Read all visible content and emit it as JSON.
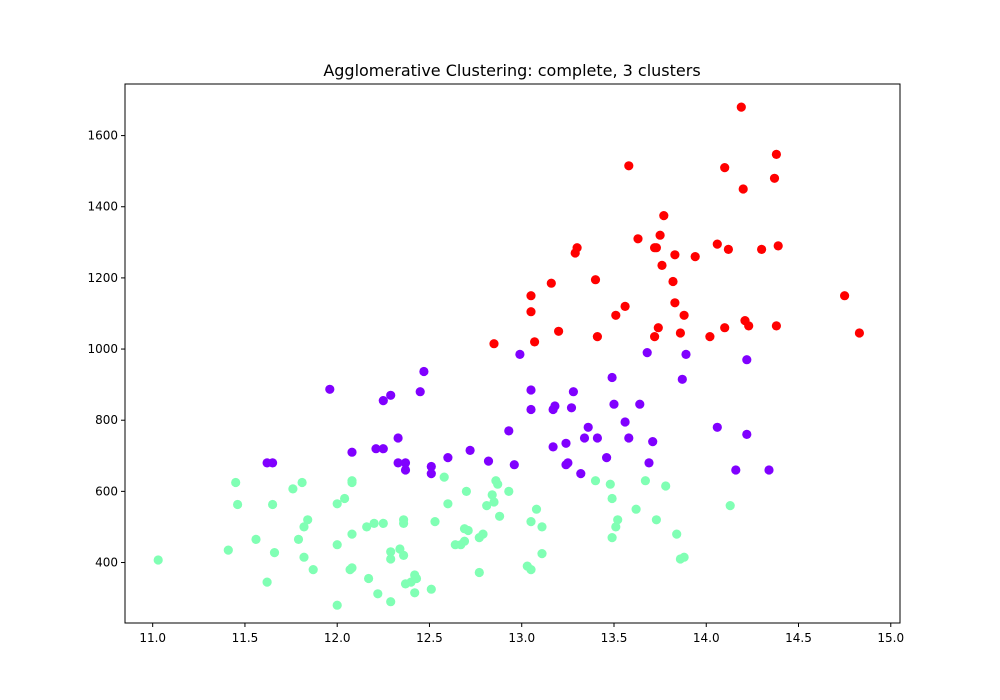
{
  "chart_data": {
    "type": "scatter",
    "title": "Agglomerative Clustering: complete, 3 clusters",
    "xlabel": "",
    "ylabel": "",
    "xlim": [
      10.85,
      15.05
    ],
    "ylim": [
      230,
      1745
    ],
    "xticks": [
      11.0,
      11.5,
      12.0,
      12.5,
      13.0,
      13.5,
      14.0,
      14.5,
      15.0
    ],
    "xtick_labels": [
      "11.0",
      "11.5",
      "12.0",
      "12.5",
      "13.0",
      "13.5",
      "14.0",
      "14.5",
      "15.0"
    ],
    "yticks": [
      400,
      600,
      800,
      1000,
      1200,
      1400,
      1600
    ],
    "ytick_labels": [
      "400",
      "600",
      "800",
      "1000",
      "1200",
      "1400",
      "1600"
    ],
    "grid": false,
    "legend": "none",
    "series": [
      {
        "color": "#ff0000",
        "points": [
          [
            14.19,
            1680
          ],
          [
            13.58,
            1515
          ],
          [
            14.1,
            1510
          ],
          [
            14.38,
            1547
          ],
          [
            14.2,
            1450
          ],
          [
            14.37,
            1480
          ],
          [
            13.77,
            1375
          ],
          [
            13.75,
            1320
          ],
          [
            13.63,
            1310
          ],
          [
            13.3,
            1285
          ],
          [
            13.29,
            1270
          ],
          [
            13.72,
            1285
          ],
          [
            13.73,
            1285
          ],
          [
            14.06,
            1295
          ],
          [
            14.12,
            1280
          ],
          [
            14.3,
            1280
          ],
          [
            14.39,
            1290
          ],
          [
            13.4,
            1195
          ],
          [
            13.76,
            1235
          ],
          [
            13.83,
            1265
          ],
          [
            13.94,
            1260
          ],
          [
            13.16,
            1185
          ],
          [
            13.05,
            1150
          ],
          [
            13.82,
            1190
          ],
          [
            13.83,
            1130
          ],
          [
            13.56,
            1120
          ],
          [
            13.05,
            1105
          ],
          [
            13.51,
            1095
          ],
          [
            13.88,
            1095
          ],
          [
            14.21,
            1080
          ],
          [
            14.1,
            1060
          ],
          [
            14.23,
            1065
          ],
          [
            14.38,
            1065
          ],
          [
            13.74,
            1060
          ],
          [
            13.2,
            1050
          ],
          [
            13.72,
            1035
          ],
          [
            13.86,
            1045
          ],
          [
            14.02,
            1035
          ],
          [
            13.41,
            1035
          ],
          [
            13.07,
            1020
          ],
          [
            12.85,
            1015
          ],
          [
            14.75,
            1150
          ],
          [
            14.83,
            1045
          ]
        ]
      },
      {
        "color": "#8000ff",
        "points": [
          [
            12.47,
            937
          ],
          [
            11.96,
            887
          ],
          [
            12.25,
            855
          ],
          [
            12.29,
            870
          ],
          [
            12.45,
            880
          ],
          [
            12.99,
            985
          ],
          [
            13.68,
            990
          ],
          [
            13.89,
            985
          ],
          [
            14.22,
            970
          ],
          [
            13.49,
            920
          ],
          [
            13.87,
            915
          ],
          [
            13.05,
            885
          ],
          [
            13.28,
            880
          ],
          [
            13.17,
            830
          ],
          [
            13.18,
            840
          ],
          [
            13.05,
            830
          ],
          [
            13.27,
            835
          ],
          [
            13.5,
            845
          ],
          [
            13.64,
            845
          ],
          [
            12.93,
            770
          ],
          [
            13.36,
            780
          ],
          [
            13.56,
            795
          ],
          [
            14.06,
            780
          ],
          [
            14.22,
            760
          ],
          [
            12.33,
            750
          ],
          [
            13.34,
            750
          ],
          [
            13.41,
            750
          ],
          [
            13.58,
            750
          ],
          [
            13.71,
            740
          ],
          [
            13.17,
            725
          ],
          [
            13.24,
            735
          ],
          [
            12.21,
            720
          ],
          [
            12.25,
            720
          ],
          [
            12.72,
            715
          ],
          [
            12.08,
            710
          ],
          [
            12.6,
            695
          ],
          [
            13.46,
            695
          ],
          [
            12.82,
            685
          ],
          [
            12.33,
            680
          ],
          [
            12.37,
            680
          ],
          [
            12.37,
            660
          ],
          [
            11.62,
            680
          ],
          [
            11.65,
            680
          ],
          [
            12.51,
            670
          ],
          [
            12.51,
            650
          ],
          [
            12.96,
            675
          ],
          [
            13.24,
            675
          ],
          [
            13.25,
            680
          ],
          [
            13.69,
            680
          ],
          [
            13.32,
            650
          ],
          [
            14.16,
            660
          ],
          [
            14.34,
            660
          ]
        ]
      },
      {
        "color": "#80ffb4",
        "points": [
          [
            11.03,
            407
          ],
          [
            11.41,
            435
          ],
          [
            11.45,
            625
          ],
          [
            11.46,
            563
          ],
          [
            11.56,
            465
          ],
          [
            11.62,
            345
          ],
          [
            11.65,
            563
          ],
          [
            11.66,
            428
          ],
          [
            11.76,
            607
          ],
          [
            11.79,
            465
          ],
          [
            11.81,
            625
          ],
          [
            11.82,
            415
          ],
          [
            11.82,
            500
          ],
          [
            11.84,
            520
          ],
          [
            11.87,
            380
          ],
          [
            12.0,
            280
          ],
          [
            12.0,
            450
          ],
          [
            12.0,
            565
          ],
          [
            12.04,
            580
          ],
          [
            12.07,
            380
          ],
          [
            12.08,
            385
          ],
          [
            12.08,
            480
          ],
          [
            12.08,
            625
          ],
          [
            12.08,
            630
          ],
          [
            12.16,
            500
          ],
          [
            12.17,
            355
          ],
          [
            12.2,
            510
          ],
          [
            12.22,
            312
          ],
          [
            12.25,
            510
          ],
          [
            12.29,
            290
          ],
          [
            12.29,
            410
          ],
          [
            12.29,
            430
          ],
          [
            12.34,
            438
          ],
          [
            12.36,
            510
          ],
          [
            12.36,
            520
          ],
          [
            12.36,
            420
          ],
          [
            12.37,
            340
          ],
          [
            12.4,
            345
          ],
          [
            12.42,
            315
          ],
          [
            12.42,
            365
          ],
          [
            12.43,
            355
          ],
          [
            12.51,
            325
          ],
          [
            12.53,
            515
          ],
          [
            12.58,
            640
          ],
          [
            12.6,
            565
          ],
          [
            12.64,
            450
          ],
          [
            12.67,
            450
          ],
          [
            12.69,
            460
          ],
          [
            12.69,
            495
          ],
          [
            12.7,
            600
          ],
          [
            12.71,
            490
          ],
          [
            12.77,
            372
          ],
          [
            12.77,
            470
          ],
          [
            12.79,
            480
          ],
          [
            12.81,
            560
          ],
          [
            12.84,
            590
          ],
          [
            12.85,
            570
          ],
          [
            12.86,
            630
          ],
          [
            12.87,
            620
          ],
          [
            12.88,
            530
          ],
          [
            12.93,
            600
          ],
          [
            13.03,
            390
          ],
          [
            13.05,
            380
          ],
          [
            13.05,
            515
          ],
          [
            13.08,
            550
          ],
          [
            13.11,
            500
          ],
          [
            13.11,
            425
          ],
          [
            13.4,
            630
          ],
          [
            13.48,
            620
          ],
          [
            13.49,
            580
          ],
          [
            13.49,
            470
          ],
          [
            13.51,
            500
          ],
          [
            13.52,
            520
          ],
          [
            13.62,
            550
          ],
          [
            13.67,
            630
          ],
          [
            13.73,
            520
          ],
          [
            13.78,
            615
          ],
          [
            13.84,
            480
          ],
          [
            13.86,
            410
          ],
          [
            13.88,
            415
          ],
          [
            14.13,
            560
          ]
        ]
      }
    ]
  }
}
